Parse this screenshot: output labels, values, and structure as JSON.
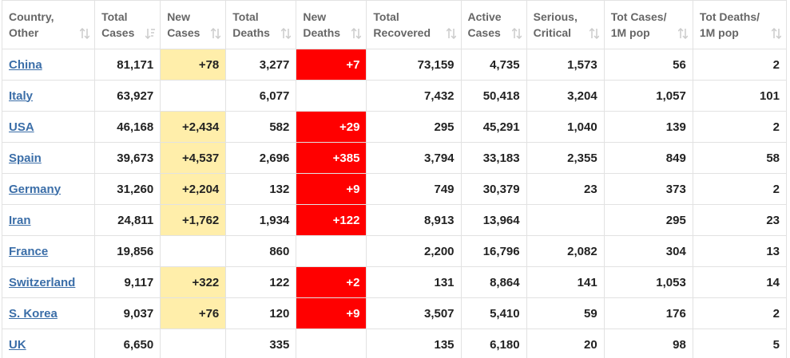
{
  "table": {
    "columns": [
      [
        "Country,",
        "Other"
      ],
      [
        "Total",
        "Cases"
      ],
      [
        "New",
        "Cases"
      ],
      [
        "Total",
        "Deaths"
      ],
      [
        "New",
        "Deaths"
      ],
      [
        "Total",
        "Recovered"
      ],
      [
        "Active",
        "Cases"
      ],
      [
        "Serious,",
        "Critical"
      ],
      [
        "Tot Cases/",
        "1M pop"
      ],
      [
        "Tot Deaths/",
        "1M pop"
      ]
    ],
    "rows": [
      [
        "China",
        "81,171",
        "+78",
        "3,277",
        "+7",
        "73,159",
        "4,735",
        "1,573",
        "56",
        "2"
      ],
      [
        "Italy",
        "63,927",
        null,
        "6,077",
        null,
        "7,432",
        "50,418",
        "3,204",
        "1,057",
        "101"
      ],
      [
        "USA",
        "46,168",
        "+2,434",
        "582",
        "+29",
        "295",
        "45,291",
        "1,040",
        "139",
        "2"
      ],
      [
        "Spain",
        "39,673",
        "+4,537",
        "2,696",
        "+385",
        "3,794",
        "33,183",
        "2,355",
        "849",
        "58"
      ],
      [
        "Germany",
        "31,260",
        "+2,204",
        "132",
        "+9",
        "749",
        "30,379",
        "23",
        "373",
        "2"
      ],
      [
        "Iran",
        "24,811",
        "+1,762",
        "1,934",
        "+122",
        "8,913",
        "13,964",
        null,
        "295",
        "23"
      ],
      [
        "France",
        "19,856",
        null,
        "860",
        null,
        "2,200",
        "16,796",
        "2,082",
        "304",
        "13"
      ],
      [
        "Switzerland",
        "9,117",
        "+322",
        "122",
        "+2",
        "131",
        "8,864",
        "141",
        "1,053",
        "14"
      ],
      [
        "S. Korea",
        "9,037",
        "+76",
        "120",
        "+9",
        "3,507",
        "5,410",
        "59",
        "176",
        "2"
      ],
      [
        "UK",
        "6,650",
        null,
        "335",
        null,
        "135",
        "6,180",
        "20",
        "98",
        "5"
      ]
    ]
  }
}
